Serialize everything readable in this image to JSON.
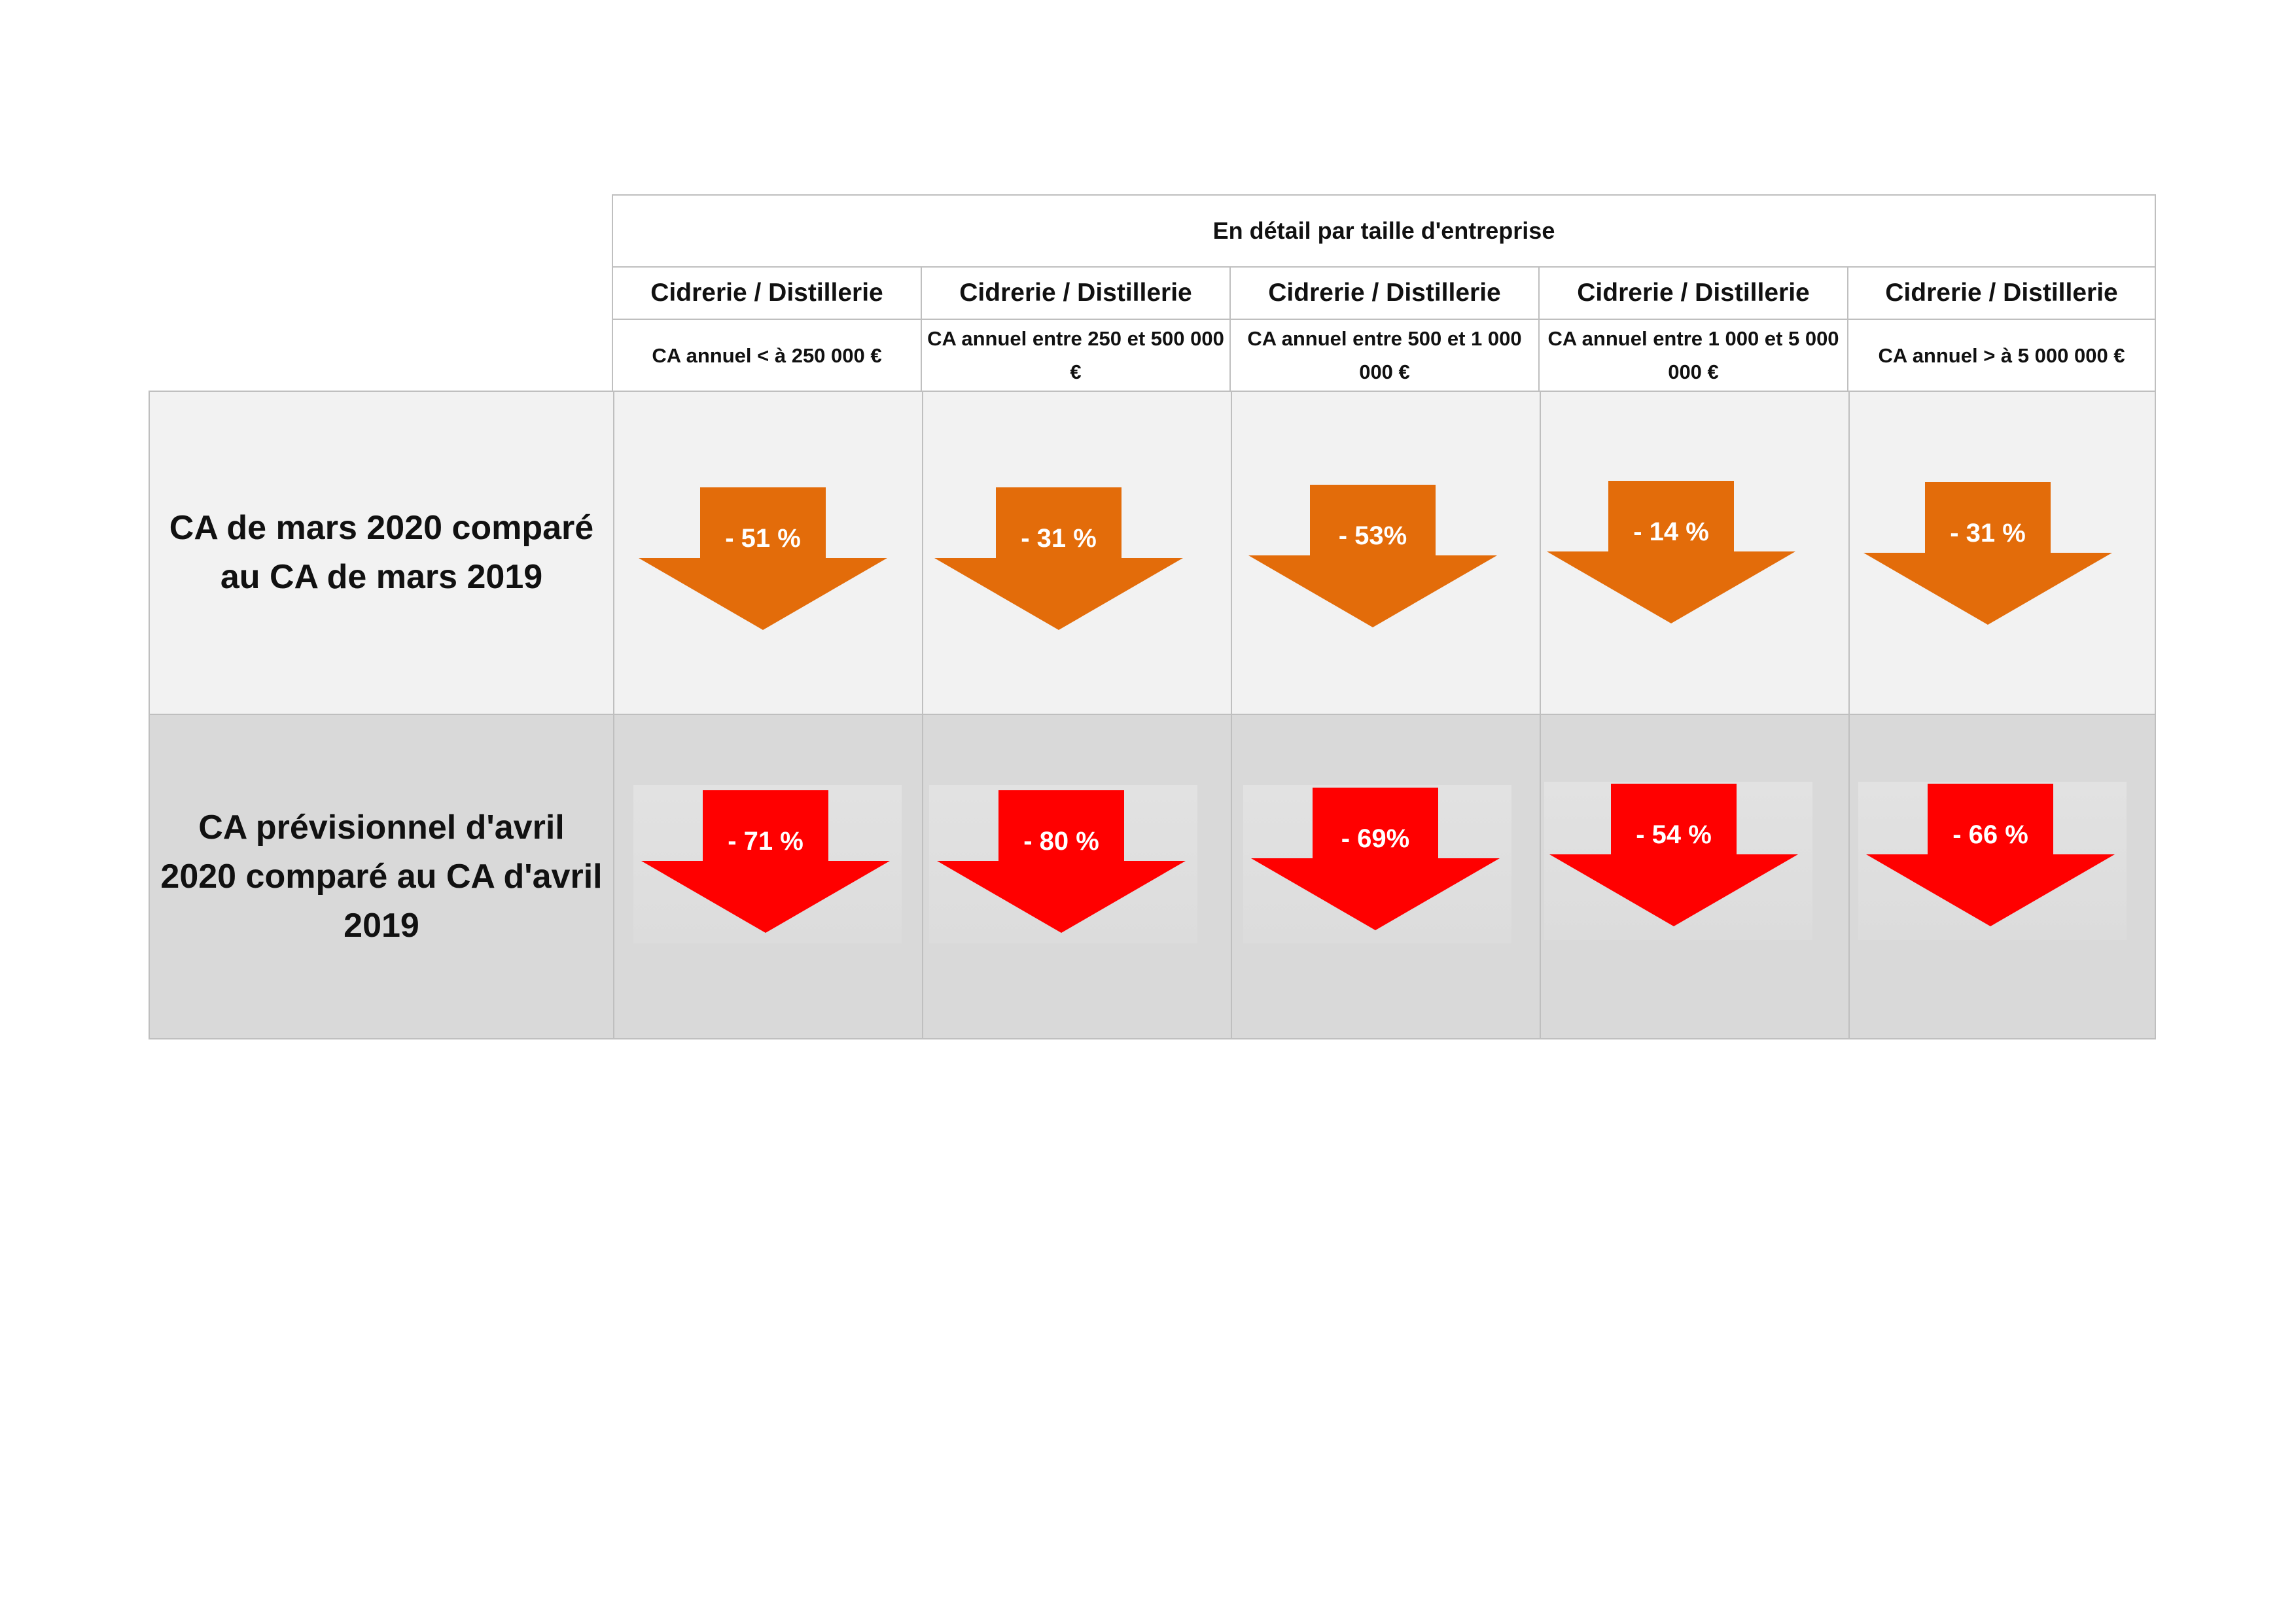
{
  "header": {
    "group_title": "En détail par taille d'entreprise",
    "columns": [
      {
        "title": "Cidrerie / Distillerie",
        "subtitle": "CA annuel < à 250 000 €"
      },
      {
        "title": "Cidrerie / Distillerie",
        "subtitle": "CA annuel entre 250 et 500 000 €"
      },
      {
        "title": "Cidrerie / Distillerie",
        "subtitle": "CA annuel entre 500 et 1 000 000 €"
      },
      {
        "title": "Cidrerie / Distillerie",
        "subtitle": "CA annuel entre 1 000 et 5 000 000 €"
      },
      {
        "title": "Cidrerie / Distillerie",
        "subtitle": "CA annuel > à 5 000 000 €"
      }
    ]
  },
  "rows": [
    {
      "label": "CA de mars 2020 comparé au CA de mars 2019",
      "arrow_color": "#e36c0a",
      "background": "#f2f2f2",
      "values": [
        "- 51 %",
        "- 31 %",
        "- 53%",
        "- 14 %",
        "- 31 %"
      ]
    },
    {
      "label": "CA prévisionnel d'avril 2020 comparé au CA d'avril 2019",
      "arrow_color": "#ff0000",
      "background": "#d9d9d9",
      "values": [
        "- 71 %",
        "- 80 %",
        "- 69%",
        "- 54 %",
        "- 66 %"
      ]
    }
  ]
}
